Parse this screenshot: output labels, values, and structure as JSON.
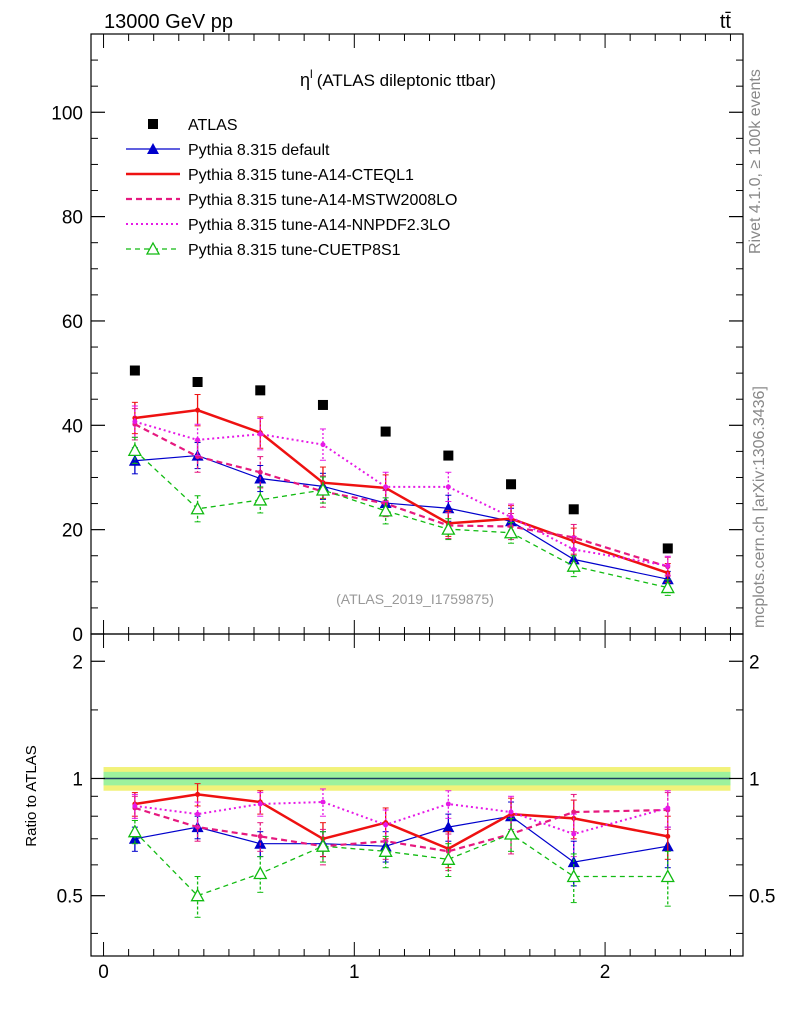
{
  "header": {
    "left": "13000 GeV pp",
    "right": "tt̄"
  },
  "side_labels": {
    "rivet": "Rivet 4.1.0, ≥ 100k events",
    "mcplots": "mcplots.cern.ch [arXiv:1306.3436]"
  },
  "plot_title": {
    "symbol": "η",
    "superscript": "l",
    "text": "(ATLAS dileptonic ttbar)"
  },
  "analysis_id": "(ATLAS_2019_I1759875)",
  "ratio_ylabel": "Ratio to ATLAS",
  "colors": {
    "data": "#000000",
    "default": "#0000cc",
    "cteql1": "#ee1111",
    "mstw": "#e6197f",
    "nnpdf": "#e619e6",
    "cuetp8s1": "#11bb11",
    "band_outer": "#f2f27a",
    "band_inner": "#9df29d",
    "ratio_line": "#1f3f5f"
  },
  "chart_data": [
    {
      "type": "line",
      "panel": "main",
      "xlim": [
        -0.05,
        2.55
      ],
      "ylim": [
        0,
        115
      ],
      "yticks": [
        "0",
        "20",
        "40",
        "60",
        "80",
        "100"
      ],
      "x": [
        0.125,
        0.375,
        0.625,
        0.875,
        1.125,
        1.375,
        1.625,
        1.875,
        2.25
      ],
      "xerr": [
        0.125,
        0.125,
        0.125,
        0.125,
        0.125,
        0.125,
        0.125,
        0.125,
        0.25
      ],
      "series": [
        {
          "name": "ATLAS",
          "key": "data",
          "style": "square",
          "values": [
            50.5,
            48.3,
            46.7,
            43.9,
            38.8,
            34.2,
            28.7,
            23.9,
            16.4
          ],
          "errors": [
            0.5,
            0.5,
            0.5,
            0.5,
            0.5,
            0.5,
            0.4,
            0.4,
            0.3
          ]
        },
        {
          "name": "Pythia 8.315 default",
          "key": "default",
          "style": "solid-tri",
          "values": [
            33.2,
            34.2,
            29.8,
            28.3,
            25.1,
            24.1,
            21.6,
            14.3,
            10.5
          ],
          "errors": [
            2.5,
            2.5,
            2.5,
            2.5,
            2.5,
            2.5,
            2.5,
            2.0,
            1.5
          ]
        },
        {
          "name": "Pythia 8.315 tune-A14-CTEQL1",
          "key": "cteql1",
          "style": "thick",
          "values": [
            41.4,
            42.9,
            38.6,
            29.0,
            28.0,
            21.2,
            22.1,
            17.8,
            11.7
          ],
          "errors": [
            3.0,
            3.0,
            3.0,
            3.0,
            2.5,
            2.5,
            2.5,
            2.5,
            1.8
          ]
        },
        {
          "name": "Pythia 8.315 tune-A14-MSTW2008LO",
          "key": "mstw",
          "style": "dashed",
          "values": [
            40.2,
            34.0,
            31.0,
            27.3,
            25.0,
            20.8,
            20.6,
            18.5,
            12.9
          ],
          "errors": [
            3.0,
            3.0,
            3.0,
            3.0,
            2.5,
            2.5,
            2.5,
            2.5,
            1.8
          ]
        },
        {
          "name": "Pythia 8.315 tune-A14-NNPDF2.3LO",
          "key": "nnpdf",
          "style": "dotted",
          "values": [
            40.7,
            37.2,
            38.3,
            36.3,
            28.2,
            28.2,
            22.4,
            16.2,
            13.1
          ],
          "errors": [
            3.0,
            3.0,
            3.0,
            3.0,
            2.8,
            2.8,
            2.5,
            2.5,
            1.8
          ]
        },
        {
          "name": "Pythia 8.315 tune-CUETP8S1",
          "key": "cuetp8s1",
          "style": "dashed-open-tri",
          "values": [
            35.2,
            24.0,
            25.7,
            27.6,
            23.6,
            20.1,
            19.4,
            13.0,
            8.9
          ],
          "errors": [
            2.5,
            2.5,
            2.5,
            2.5,
            2.5,
            2.0,
            2.0,
            2.0,
            1.5
          ]
        }
      ]
    },
    {
      "type": "line",
      "panel": "ratio",
      "ylabel": "Ratio to ATLAS",
      "xlabel": "",
      "xlim": [
        -0.05,
        2.55
      ],
      "ylim": [
        0.35,
        2.35
      ],
      "yticks": [
        "0.5",
        "1",
        "2"
      ],
      "xticks": [
        "0",
        "1",
        "2"
      ],
      "band": {
        "outer": [
          0.93,
          1.07
        ],
        "inner": [
          0.96,
          1.04
        ]
      },
      "x": [
        0.125,
        0.375,
        0.625,
        0.875,
        1.125,
        1.375,
        1.625,
        1.875,
        2.25
      ],
      "series": [
        {
          "name": "Pythia 8.315 default",
          "key": "default",
          "style": "solid-tri",
          "values": [
            0.7,
            0.75,
            0.68,
            0.68,
            0.67,
            0.75,
            0.8,
            0.61,
            0.67
          ],
          "errors": [
            0.05,
            0.05,
            0.05,
            0.05,
            0.06,
            0.06,
            0.07,
            0.08,
            0.08
          ]
        },
        {
          "name": "Pythia 8.315 tune-A14-CTEQL1",
          "key": "cteql1",
          "style": "thick",
          "values": [
            0.86,
            0.91,
            0.87,
            0.7,
            0.77,
            0.66,
            0.81,
            0.79,
            0.71
          ],
          "errors": [
            0.06,
            0.06,
            0.06,
            0.07,
            0.07,
            0.07,
            0.08,
            0.09,
            0.09
          ]
        },
        {
          "name": "Pythia 8.315 tune-A14-MSTW2008LO",
          "key": "mstw",
          "style": "dashed",
          "values": [
            0.84,
            0.75,
            0.71,
            0.67,
            0.69,
            0.65,
            0.72,
            0.82,
            0.83
          ],
          "errors": [
            0.06,
            0.06,
            0.06,
            0.07,
            0.07,
            0.07,
            0.08,
            0.09,
            0.09
          ]
        },
        {
          "name": "Pythia 8.315 tune-A14-NNPDF2.3LO",
          "key": "nnpdf",
          "style": "dotted",
          "values": [
            0.85,
            0.81,
            0.86,
            0.87,
            0.76,
            0.86,
            0.82,
            0.72,
            0.84
          ],
          "errors": [
            0.06,
            0.06,
            0.06,
            0.07,
            0.07,
            0.07,
            0.08,
            0.09,
            0.09
          ]
        },
        {
          "name": "Pythia 8.315 tune-CUETP8S1",
          "key": "cuetp8s1",
          "style": "dashed-open-tri",
          "values": [
            0.73,
            0.5,
            0.57,
            0.67,
            0.65,
            0.62,
            0.72,
            0.56,
            0.56
          ],
          "errors": [
            0.05,
            0.06,
            0.06,
            0.06,
            0.06,
            0.06,
            0.07,
            0.08,
            0.09
          ]
        }
      ]
    }
  ]
}
